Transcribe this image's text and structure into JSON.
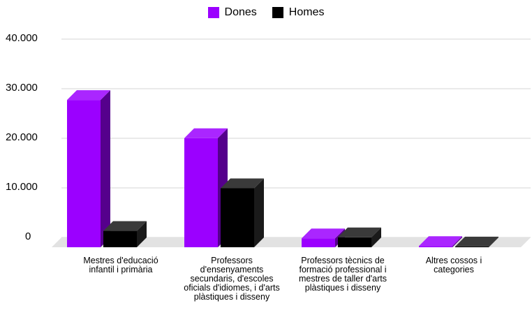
{
  "chart_data": {
    "type": "bar",
    "categories": [
      "Mestres d'educació infantil i primària",
      "Professors d'ensenyaments secundaris, d'escoles oficials d'idiomes, i d'arts plàstiques i disseny",
      "Professors tècnics de formació professional i mestres de taller d'arts plàstiques i disseny",
      "Altres cossos i categories"
    ],
    "series": [
      {
        "name": "Dones",
        "values": [
          29700,
          22000,
          1800,
          250
        ],
        "color": "#9b00ff"
      },
      {
        "name": "Homes",
        "values": [
          3300,
          11900,
          2000,
          150
        ],
        "color": "#000000"
      }
    ],
    "ylim": [
      0,
      40000
    ],
    "yticks": [
      "0",
      "10.000",
      "20.000",
      "30.000",
      "40.000"
    ],
    "ytick_values": [
      0,
      10000,
      20000,
      30000,
      40000
    ],
    "grid": true,
    "legend_position": "top-center",
    "title": "",
    "xlabel": "",
    "ylabel": ""
  }
}
